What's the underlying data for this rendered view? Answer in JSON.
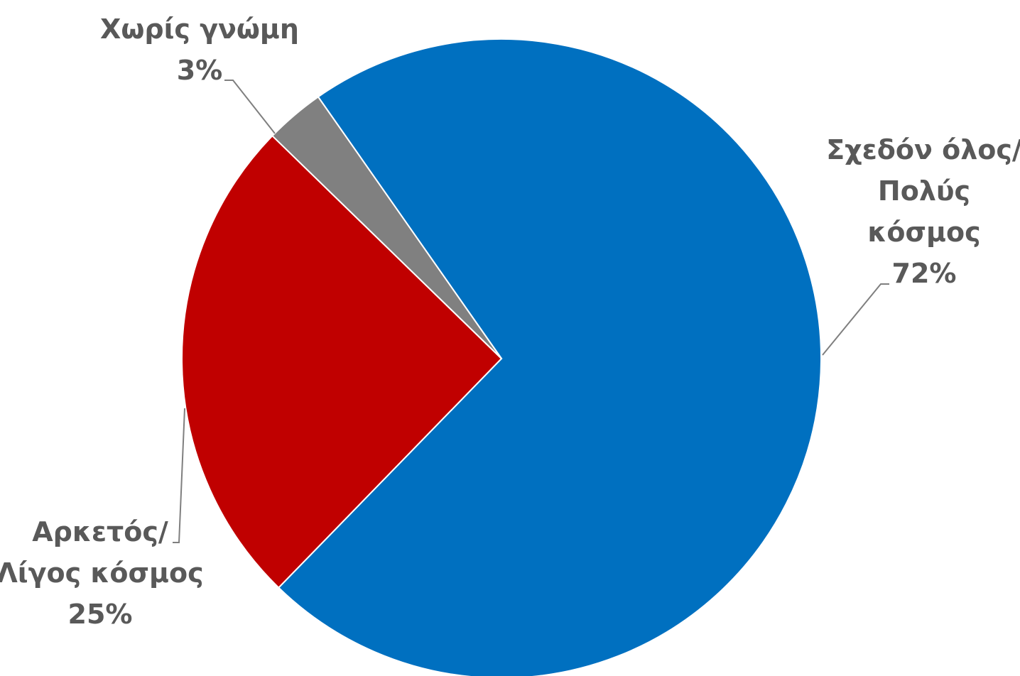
{
  "chart_data": {
    "type": "pie",
    "title": "",
    "slices": [
      {
        "label_lines": [
          "Σχεδόν όλος/",
          "Πολύς",
          "κόσμος"
        ],
        "value": 72,
        "value_label": "72%",
        "color": "#0070C0"
      },
      {
        "label_lines": [
          "Αρκετός/",
          "Λίγος κόσμος"
        ],
        "value": 25,
        "value_label": "25%",
        "color": "#C00000"
      },
      {
        "label_lines": [
          "Χωρίς γνώμη"
        ],
        "value": 3,
        "value_label": "3%",
        "color": "#808080"
      }
    ],
    "start_angle_deg": -35,
    "direction": "clockwise",
    "legend": "none",
    "data_labels": "outside-with-leader-lines"
  }
}
